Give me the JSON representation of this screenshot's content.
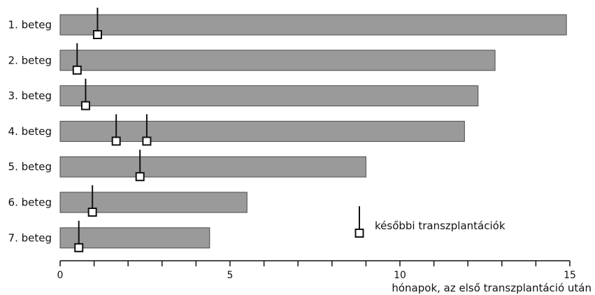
{
  "chart_data": {
    "type": "bar",
    "orientation": "horizontal",
    "categories": [
      "1. beteg",
      "2. beteg",
      "3. beteg",
      "4. beteg",
      "5. beteg",
      "6. beteg",
      "7. beteg"
    ],
    "values": [
      14.9,
      12.8,
      12.3,
      11.9,
      9.0,
      5.5,
      4.4
    ],
    "later_transplants": [
      [
        1.1
      ],
      [
        0.5
      ],
      [
        0.75
      ],
      [
        1.65,
        2.55
      ],
      [
        2.35
      ],
      [
        0.95
      ],
      [
        0.55
      ]
    ],
    "xlabel": "hónapok, az első transzplantáció után",
    "xlim": [
      0,
      15
    ],
    "xticks": [
      0,
      5,
      10,
      15
    ],
    "minor_tick_step": 1,
    "legend": {
      "label": "későbbi transzplantációk",
      "placement": "right-middle"
    },
    "bar_color": "#9a9a9a",
    "grid": false
  }
}
